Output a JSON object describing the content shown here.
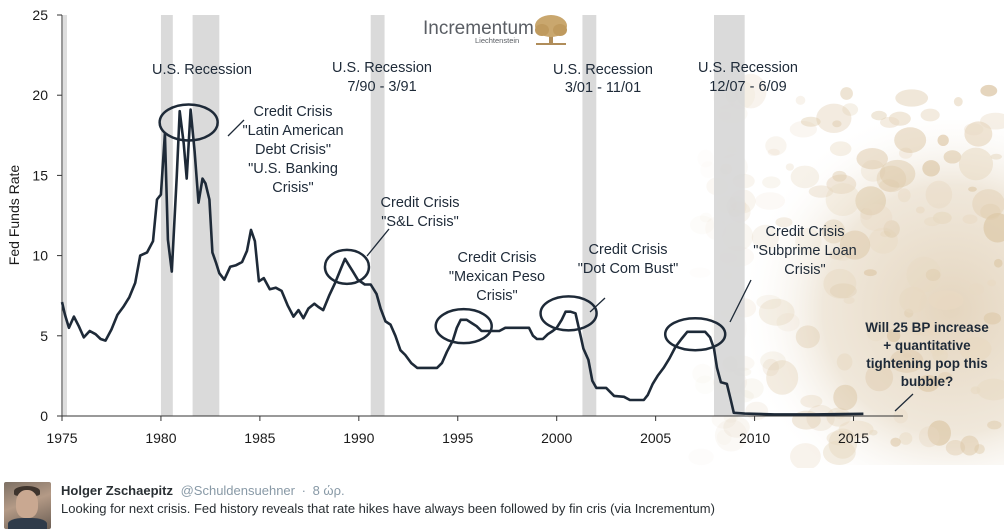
{
  "chart_data": {
    "type": "line",
    "title": "",
    "xlabel": "",
    "ylabel": "Fed Funds Rate",
    "xlim": [
      1975,
      2017.5
    ],
    "ylim": [
      0,
      25
    ],
    "x_ticks": [
      1975,
      1980,
      1985,
      1990,
      1995,
      2000,
      2005,
      2010,
      2015
    ],
    "y_ticks": [
      0,
      5,
      10,
      15,
      20,
      25
    ],
    "grid": false,
    "series": [
      {
        "name": "Fed Funds Rate",
        "color": "#1e2a38",
        "points": [
          [
            1975.0,
            7.1
          ],
          [
            1975.15,
            6.3
          ],
          [
            1975.35,
            5.5
          ],
          [
            1975.6,
            6.2
          ],
          [
            1975.85,
            5.6
          ],
          [
            1976.1,
            4.9
          ],
          [
            1976.4,
            5.3
          ],
          [
            1976.7,
            5.1
          ],
          [
            1976.95,
            4.8
          ],
          [
            1977.2,
            4.7
          ],
          [
            1977.5,
            5.4
          ],
          [
            1977.8,
            6.3
          ],
          [
            1978.1,
            6.8
          ],
          [
            1978.4,
            7.4
          ],
          [
            1978.7,
            8.3
          ],
          [
            1978.95,
            10.0
          ],
          [
            1979.3,
            10.2
          ],
          [
            1979.6,
            10.9
          ],
          [
            1979.8,
            13.5
          ],
          [
            1980.0,
            13.8
          ],
          [
            1980.2,
            17.6
          ],
          [
            1980.35,
            11.0
          ],
          [
            1980.55,
            9.0
          ],
          [
            1980.8,
            15.0
          ],
          [
            1980.95,
            19.0
          ],
          [
            1981.15,
            17.0
          ],
          [
            1981.3,
            14.8
          ],
          [
            1981.5,
            19.1
          ],
          [
            1981.7,
            16.5
          ],
          [
            1981.9,
            13.3
          ],
          [
            1982.1,
            14.8
          ],
          [
            1982.25,
            14.5
          ],
          [
            1982.45,
            13.5
          ],
          [
            1982.6,
            10.2
          ],
          [
            1982.8,
            9.5
          ],
          [
            1982.95,
            8.9
          ],
          [
            1983.2,
            8.5
          ],
          [
            1983.5,
            9.3
          ],
          [
            1983.8,
            9.4
          ],
          [
            1984.1,
            9.6
          ],
          [
            1984.35,
            10.3
          ],
          [
            1984.55,
            11.6
          ],
          [
            1984.75,
            10.9
          ],
          [
            1984.95,
            8.4
          ],
          [
            1985.2,
            8.6
          ],
          [
            1985.5,
            7.9
          ],
          [
            1985.8,
            8.0
          ],
          [
            1986.1,
            7.8
          ],
          [
            1986.4,
            6.9
          ],
          [
            1986.7,
            6.2
          ],
          [
            1986.95,
            6.6
          ],
          [
            1987.2,
            6.1
          ],
          [
            1987.45,
            6.7
          ],
          [
            1987.75,
            7.0
          ],
          [
            1987.95,
            6.8
          ],
          [
            1988.2,
            6.6
          ],
          [
            1988.5,
            7.5
          ],
          [
            1988.8,
            8.3
          ],
          [
            1989.1,
            9.2
          ],
          [
            1989.3,
            9.8
          ],
          [
            1989.5,
            9.4
          ],
          [
            1989.7,
            9.0
          ],
          [
            1989.95,
            8.5
          ],
          [
            1990.3,
            8.2
          ],
          [
            1990.6,
            8.2
          ],
          [
            1990.9,
            7.6
          ],
          [
            1991.1,
            6.7
          ],
          [
            1991.35,
            5.9
          ],
          [
            1991.6,
            5.7
          ],
          [
            1991.85,
            5.0
          ],
          [
            1992.1,
            4.1
          ],
          [
            1992.35,
            3.8
          ],
          [
            1992.65,
            3.3
          ],
          [
            1992.95,
            3.0
          ],
          [
            1993.3,
            3.0
          ],
          [
            1993.6,
            3.0
          ],
          [
            1993.95,
            3.0
          ],
          [
            1994.2,
            3.3
          ],
          [
            1994.45,
            4.0
          ],
          [
            1994.75,
            4.7
          ],
          [
            1994.95,
            5.5
          ],
          [
            1995.15,
            6.0
          ],
          [
            1995.45,
            6.0
          ],
          [
            1995.7,
            5.8
          ],
          [
            1995.95,
            5.6
          ],
          [
            1996.2,
            5.3
          ],
          [
            1996.5,
            5.3
          ],
          [
            1996.8,
            5.3
          ],
          [
            1997.1,
            5.3
          ],
          [
            1997.4,
            5.5
          ],
          [
            1997.7,
            5.5
          ],
          [
            1998.0,
            5.5
          ],
          [
            1998.3,
            5.5
          ],
          [
            1998.6,
            5.5
          ],
          [
            1998.8,
            5.0
          ],
          [
            1999.0,
            4.8
          ],
          [
            1999.3,
            4.8
          ],
          [
            1999.55,
            5.1
          ],
          [
            1999.8,
            5.3
          ],
          [
            2000.0,
            5.5
          ],
          [
            2000.25,
            6.0
          ],
          [
            2000.45,
            6.5
          ],
          [
            2000.7,
            6.5
          ],
          [
            2000.95,
            6.4
          ],
          [
            2001.15,
            5.3
          ],
          [
            2001.35,
            4.2
          ],
          [
            2001.6,
            3.5
          ],
          [
            2001.8,
            2.2
          ],
          [
            2002.0,
            1.75
          ],
          [
            2002.5,
            1.75
          ],
          [
            2002.9,
            1.25
          ],
          [
            2003.4,
            1.2
          ],
          [
            2003.7,
            1.0
          ],
          [
            2004.0,
            1.0
          ],
          [
            2004.4,
            1.0
          ],
          [
            2004.6,
            1.3
          ],
          [
            2004.85,
            2.0
          ],
          [
            2005.1,
            2.5
          ],
          [
            2005.4,
            3.0
          ],
          [
            2005.7,
            3.6
          ],
          [
            2006.0,
            4.3
          ],
          [
            2006.3,
            4.8
          ],
          [
            2006.6,
            5.25
          ],
          [
            2007.0,
            5.25
          ],
          [
            2007.5,
            5.25
          ],
          [
            2007.75,
            4.9
          ],
          [
            2007.95,
            4.2
          ],
          [
            2008.1,
            3.0
          ],
          [
            2008.3,
            2.1
          ],
          [
            2008.6,
            2.0
          ],
          [
            2008.8,
            1.0
          ],
          [
            2008.95,
            0.2
          ],
          [
            2009.5,
            0.15
          ],
          [
            2011.0,
            0.1
          ],
          [
            2013.0,
            0.1
          ],
          [
            2015.0,
            0.13
          ],
          [
            2015.5,
            0.14
          ]
        ]
      }
    ],
    "recessions": [
      [
        1980.0,
        1980.6
      ],
      [
        1981.6,
        1982.95
      ],
      [
        1990.6,
        1991.3
      ],
      [
        2001.3,
        2002.0
      ],
      [
        2007.95,
        2009.5
      ]
    ],
    "highlight_ellipses": [
      {
        "x": 1981.4,
        "y": 18.3
      },
      {
        "x": 1989.4,
        "y": 9.3
      },
      {
        "x": 1995.3,
        "y": 5.6
      },
      {
        "x": 2000.6,
        "y": 6.4
      },
      {
        "x": 2007.0,
        "y": 5.1
      }
    ],
    "annotations": {
      "recession_1980": [
        "U.S. Recession"
      ],
      "recession_1990": [
        "U.S. Recession",
        "7/90 - 3/91"
      ],
      "recession_2001": [
        "U.S. Recession",
        "3/01 - 11/01"
      ],
      "recession_2007": [
        "U.S. Recession",
        "12/07 - 6/09"
      ],
      "crisis_1980s": [
        "Credit Crisis",
        "\"Latin American",
        "Debt Crisis\"",
        "\"U.S. Banking",
        "Crisis\""
      ],
      "crisis_sl": [
        "Credit Crisis",
        "\"S&L Crisis\""
      ],
      "crisis_peso": [
        "Credit Crisis",
        "\"Mexican Peso",
        "Crisis\""
      ],
      "crisis_dotcom": [
        "Credit Crisis",
        "\"Dot Com Bust\""
      ],
      "crisis_subprime": [
        "Credit Crisis",
        "\"Subprime Loan",
        "Crisis\""
      ],
      "question": [
        "Will 25 BP increase",
        "+ quantitative",
        "tightening pop this",
        "bubble?"
      ]
    }
  },
  "logo": {
    "name": "Incrementum",
    "subtitle": "Liechtenstein"
  },
  "colors": {
    "line": "#1e2a38",
    "recession_band": "#d6d6d6",
    "texture": "#e9dcc8"
  },
  "tweet": {
    "author_name": "Holger Zschaepitz",
    "handle": "@Schuldensuehner",
    "separator": "·",
    "time": "8 ώρ.",
    "text": "Looking for next crisis. Fed history reveals that rate hikes have always been followed by fin cris (via Incrementum)"
  }
}
